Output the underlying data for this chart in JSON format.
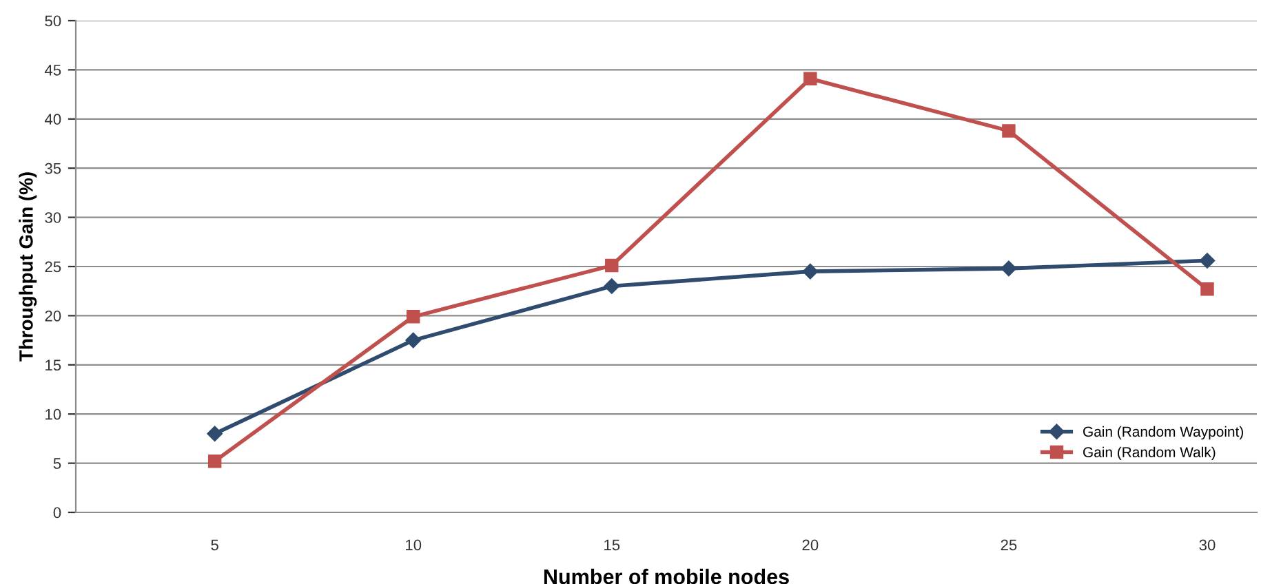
{
  "chart_data": {
    "type": "line",
    "xlabel": "Number of mobile nodes",
    "ylabel": "Throughput Gain (%)",
    "categories": [
      "5",
      "10",
      "15",
      "20",
      "25",
      "30"
    ],
    "series": [
      {
        "name": "Gain (Random Waypoint)",
        "color": "#2f4b6e",
        "marker": "diamond",
        "values": [
          8.0,
          17.5,
          23.0,
          24.5,
          24.8,
          25.6
        ]
      },
      {
        "name": "Gain (Random Walk)",
        "color": "#c0504d",
        "marker": "square",
        "values": [
          5.2,
          19.9,
          25.1,
          44.1,
          38.8,
          22.7
        ]
      }
    ],
    "ylim": [
      0,
      50
    ],
    "yticks": [
      0,
      5,
      10,
      15,
      20,
      25,
      30,
      35,
      40,
      45,
      50
    ],
    "grid": "y",
    "legend": "right",
    "line_style": "solid"
  }
}
